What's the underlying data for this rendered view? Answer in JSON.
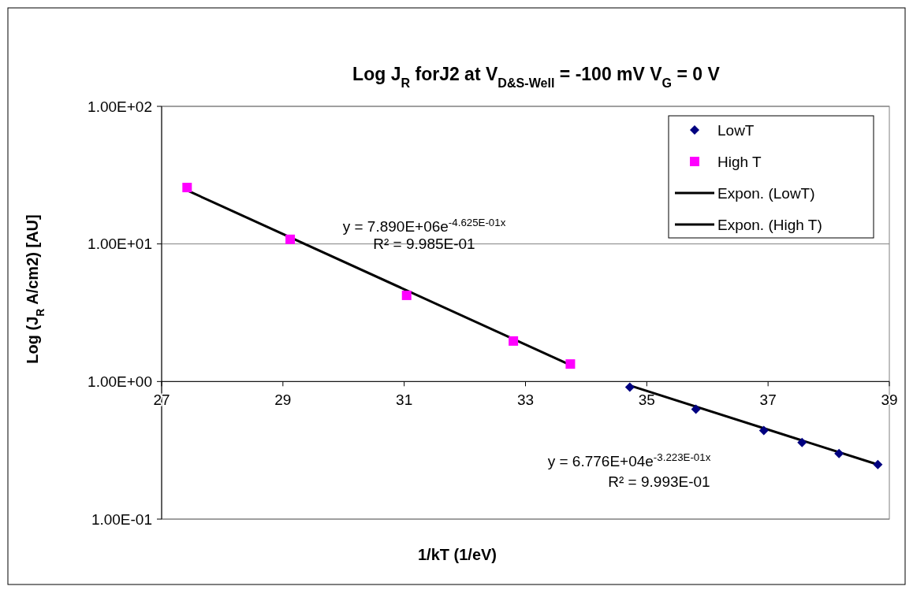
{
  "chart_data": {
    "type": "scatter",
    "title": "Log J$_{R}$ forJ2 at V$_{D&S-Well}$ = -100 mV  V$_{G}$ = 0 V",
    "xlabel": "1/kT (1/eV)",
    "ylabel": "Log (J$_{R}$ A/cm2) [AU]",
    "xlim": [
      27,
      39
    ],
    "xticks": [
      27,
      29,
      31,
      33,
      35,
      37,
      39
    ],
    "ylim": [
      0.1,
      100
    ],
    "yticks": [
      {
        "value": 0.1,
        "label": "1.00E-01"
      },
      {
        "value": 1,
        "label": "1.00E+00"
      },
      {
        "value": 10,
        "label": "1.00E+01"
      },
      {
        "value": 100,
        "label": "1.00E+02"
      }
    ],
    "log": "y",
    "grid": "y",
    "legend": "top right",
    "series": [
      {
        "name": "LowT",
        "marker": "diamond",
        "color": "#000080",
        "x": [
          34.72,
          35.81,
          36.93,
          37.56,
          38.17,
          38.81
        ],
        "values": [
          0.91,
          0.63,
          0.44,
          0.36,
          0.3,
          0.249
        ]
      },
      {
        "name": "High T",
        "marker": "square",
        "color": "#ff00ff",
        "x": [
          27.42,
          29.12,
          31.04,
          32.8,
          33.74
        ],
        "values": [
          25.7,
          10.8,
          4.23,
          1.97,
          1.34
        ]
      },
      {
        "name": "Expon. (LowT)",
        "type": "line",
        "color": "#000000",
        "x": [
          34.72,
          38.81
        ],
        "values": [
          0.935,
          0.249
        ]
      },
      {
        "name": "Expon. (High T)",
        "type": "line",
        "color": "#000000",
        "x": [
          27.42,
          33.74
        ],
        "values": [
          24.5,
          1.32
        ]
      }
    ],
    "annotations": [
      "y = 7.890E+06e$^{-4.625E-01x}$",
      "R² = 9.985E-01",
      "y = 6.776E+04e$^{-3.223E-01x}$",
      "R² = 9.993E-01"
    ]
  }
}
